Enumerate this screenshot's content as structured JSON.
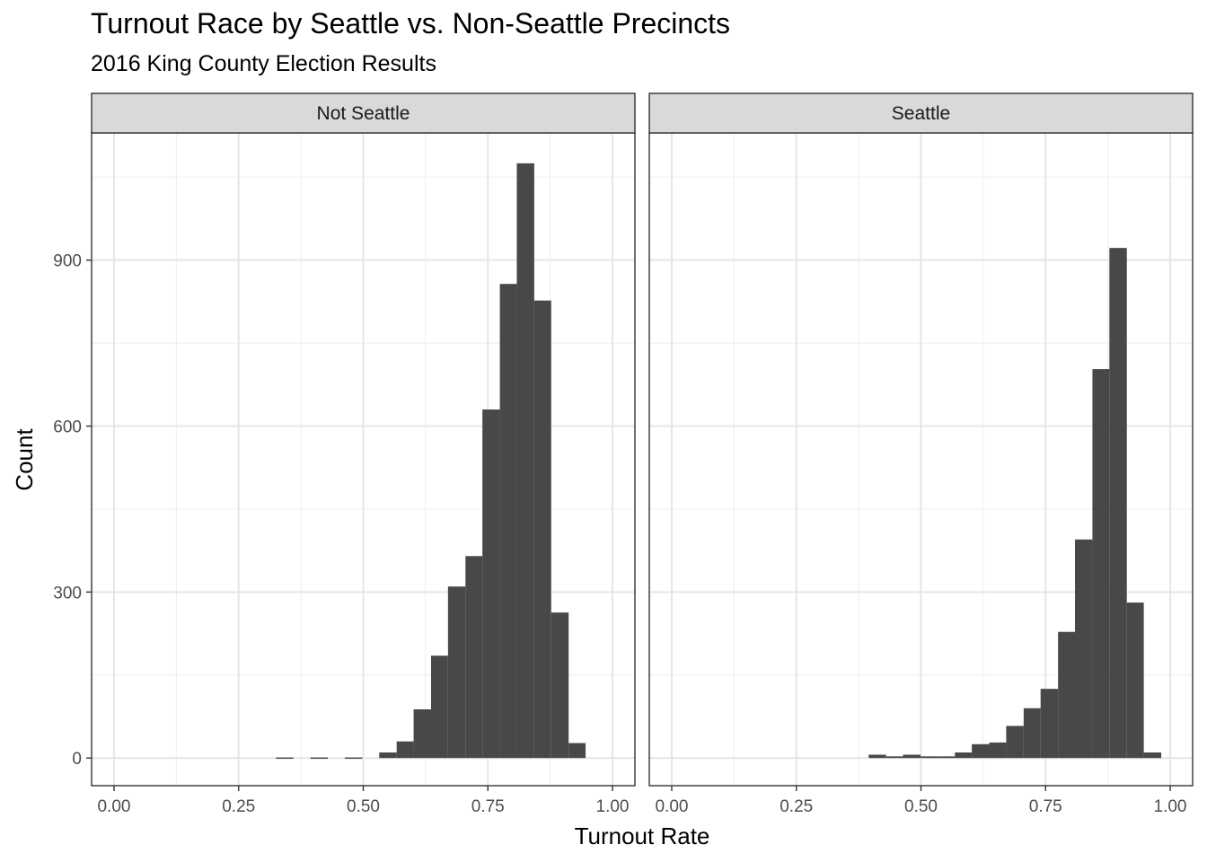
{
  "title": "Turnout Race by Seattle vs. Non-Seattle Precincts",
  "subtitle": "2016 King County Election Results",
  "chart_data": {
    "type": "bar",
    "subtype": "histogram",
    "title": "Turnout Race by Seattle vs. Non-Seattle Precincts",
    "subtitle": "2016 King County Election Results",
    "xlabel": "Turnout Rate",
    "ylabel": "Count",
    "xlim": [
      -0.045,
      1.045
    ],
    "ylim": [
      -50,
      1130
    ],
    "x_ticks": [
      0.0,
      0.25,
      0.5,
      0.75,
      1.0
    ],
    "x_tick_labels": [
      "0.00",
      "0.25",
      "0.50",
      "0.75",
      "1.00"
    ],
    "y_ticks": [
      0,
      300,
      600,
      900
    ],
    "y_tick_labels": [
      "0",
      "300",
      "600",
      "900"
    ],
    "grid": true,
    "bar_color": "#484848",
    "facet_strip_color": "#d9d9d9",
    "panels": [
      {
        "name": "Not Seattle",
        "bins": [
          {
            "x0": 0.325,
            "x1": 0.36,
            "count": 1
          },
          {
            "x0": 0.394,
            "x1": 0.429,
            "count": 1
          },
          {
            "x0": 0.463,
            "x1": 0.498,
            "count": 1
          },
          {
            "x0": 0.532,
            "x1": 0.567,
            "count": 10
          },
          {
            "x0": 0.567,
            "x1": 0.601,
            "count": 30
          },
          {
            "x0": 0.601,
            "x1": 0.636,
            "count": 88
          },
          {
            "x0": 0.636,
            "x1": 0.67,
            "count": 185
          },
          {
            "x0": 0.67,
            "x1": 0.705,
            "count": 310
          },
          {
            "x0": 0.705,
            "x1": 0.739,
            "count": 365
          },
          {
            "x0": 0.739,
            "x1": 0.774,
            "count": 630
          },
          {
            "x0": 0.774,
            "x1": 0.808,
            "count": 857
          },
          {
            "x0": 0.808,
            "x1": 0.843,
            "count": 1075
          },
          {
            "x0": 0.843,
            "x1": 0.877,
            "count": 827
          },
          {
            "x0": 0.877,
            "x1": 0.912,
            "count": 263
          },
          {
            "x0": 0.912,
            "x1": 0.946,
            "count": 27
          }
        ]
      },
      {
        "name": "Seattle",
        "bins": [
          {
            "x0": 0.395,
            "x1": 0.43,
            "count": 6
          },
          {
            "x0": 0.43,
            "x1": 0.464,
            "count": 3
          },
          {
            "x0": 0.464,
            "x1": 0.499,
            "count": 6
          },
          {
            "x0": 0.499,
            "x1": 0.533,
            "count": 3
          },
          {
            "x0": 0.533,
            "x1": 0.568,
            "count": 3
          },
          {
            "x0": 0.568,
            "x1": 0.602,
            "count": 10
          },
          {
            "x0": 0.602,
            "x1": 0.637,
            "count": 25
          },
          {
            "x0": 0.637,
            "x1": 0.671,
            "count": 28
          },
          {
            "x0": 0.671,
            "x1": 0.706,
            "count": 58
          },
          {
            "x0": 0.706,
            "x1": 0.74,
            "count": 90
          },
          {
            "x0": 0.74,
            "x1": 0.775,
            "count": 125
          },
          {
            "x0": 0.775,
            "x1": 0.809,
            "count": 228
          },
          {
            "x0": 0.809,
            "x1": 0.844,
            "count": 395
          },
          {
            "x0": 0.844,
            "x1": 0.878,
            "count": 703
          },
          {
            "x0": 0.878,
            "x1": 0.913,
            "count": 922
          },
          {
            "x0": 0.913,
            "x1": 0.947,
            "count": 281
          },
          {
            "x0": 0.947,
            "x1": 0.982,
            "count": 10
          }
        ]
      }
    ]
  }
}
